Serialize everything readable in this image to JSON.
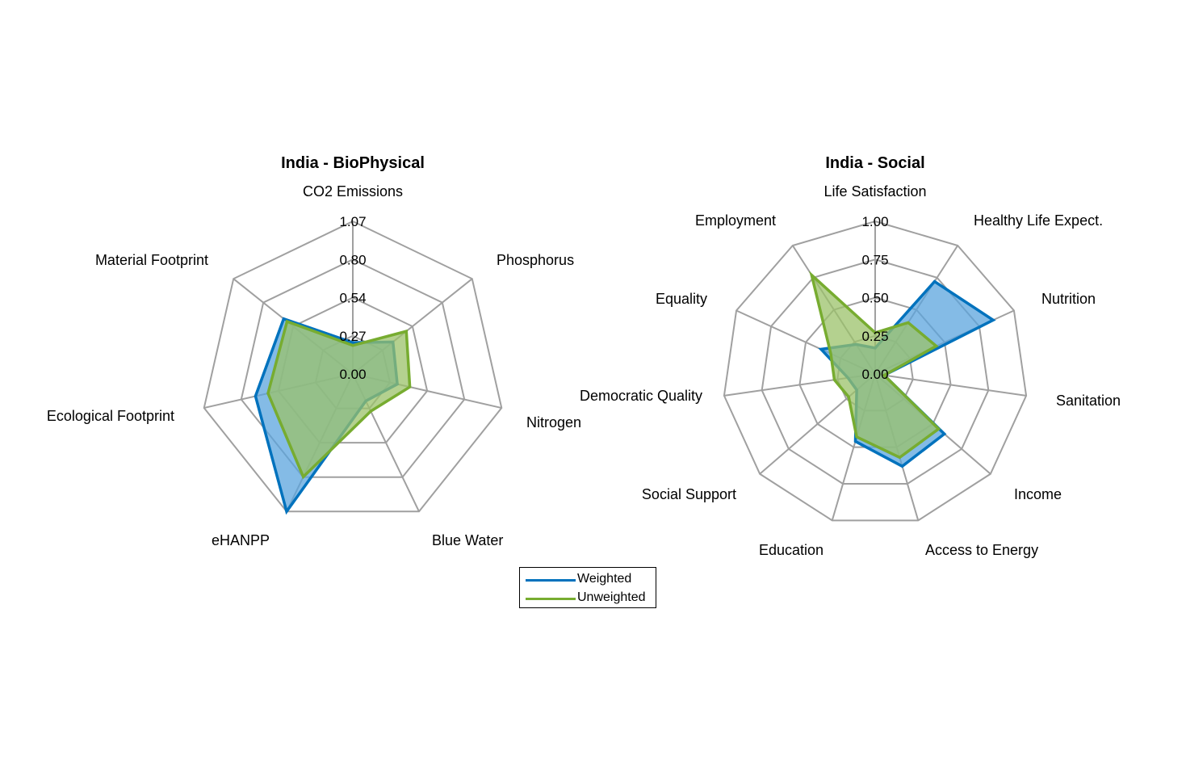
{
  "colors": {
    "weighted": "#0072BD",
    "weighted_fill": "#5BA4DE",
    "unweighted": "#77AC30",
    "unweighted_fill": "#9BC26A",
    "grid": "#A0A0A0"
  },
  "legend": {
    "placement": "bottom-center",
    "items": [
      {
        "label": "Weighted",
        "color": "#0072BD"
      },
      {
        "label": "Unweighted",
        "color": "#77AC30"
      }
    ]
  },
  "chart_data": [
    {
      "type": "radar",
      "title": "India - BioPhysical",
      "axes": [
        "CO2 Emissions",
        "Phosphorus",
        "Nitrogen",
        "Blue Water",
        "eHANPP",
        "Ecological Footprint",
        "Material Footprint"
      ],
      "ticks": [
        "0.00",
        "0.27",
        "0.54",
        "0.80",
        "1.07"
      ],
      "rmax": 1.07,
      "grid": true,
      "series": [
        {
          "name": "Weighted",
          "values": [
            0.22,
            0.36,
            0.32,
            0.21,
            1.07,
            0.7,
            0.62
          ]
        },
        {
          "name": "Unweighted",
          "values": [
            0.2,
            0.48,
            0.41,
            0.29,
            0.8,
            0.61,
            0.59
          ]
        }
      ]
    },
    {
      "type": "radar",
      "title": "India - Social",
      "axes": [
        "Life Satisfaction",
        "Healthy Life Expect.",
        "Nutrition",
        "Sanitation",
        "Income",
        "Access to Energy",
        "Education",
        "Social Support",
        "Democratic Quality",
        "Equality",
        "Employment"
      ],
      "ticks": [
        "0.00",
        "0.25",
        "0.50",
        "0.75",
        "1.00"
      ],
      "rmax": 1.0,
      "grid": true,
      "series": [
        {
          "name": "Weighted",
          "values": [
            0.17,
            0.72,
            0.85,
            0.06,
            0.6,
            0.63,
            0.46,
            0.16,
            0.18,
            0.39,
            0.23
          ]
        },
        {
          "name": "Unweighted",
          "values": [
            0.27,
            0.4,
            0.44,
            0.06,
            0.55,
            0.57,
            0.43,
            0.23,
            0.27,
            0.32,
            0.77
          ]
        }
      ]
    }
  ]
}
